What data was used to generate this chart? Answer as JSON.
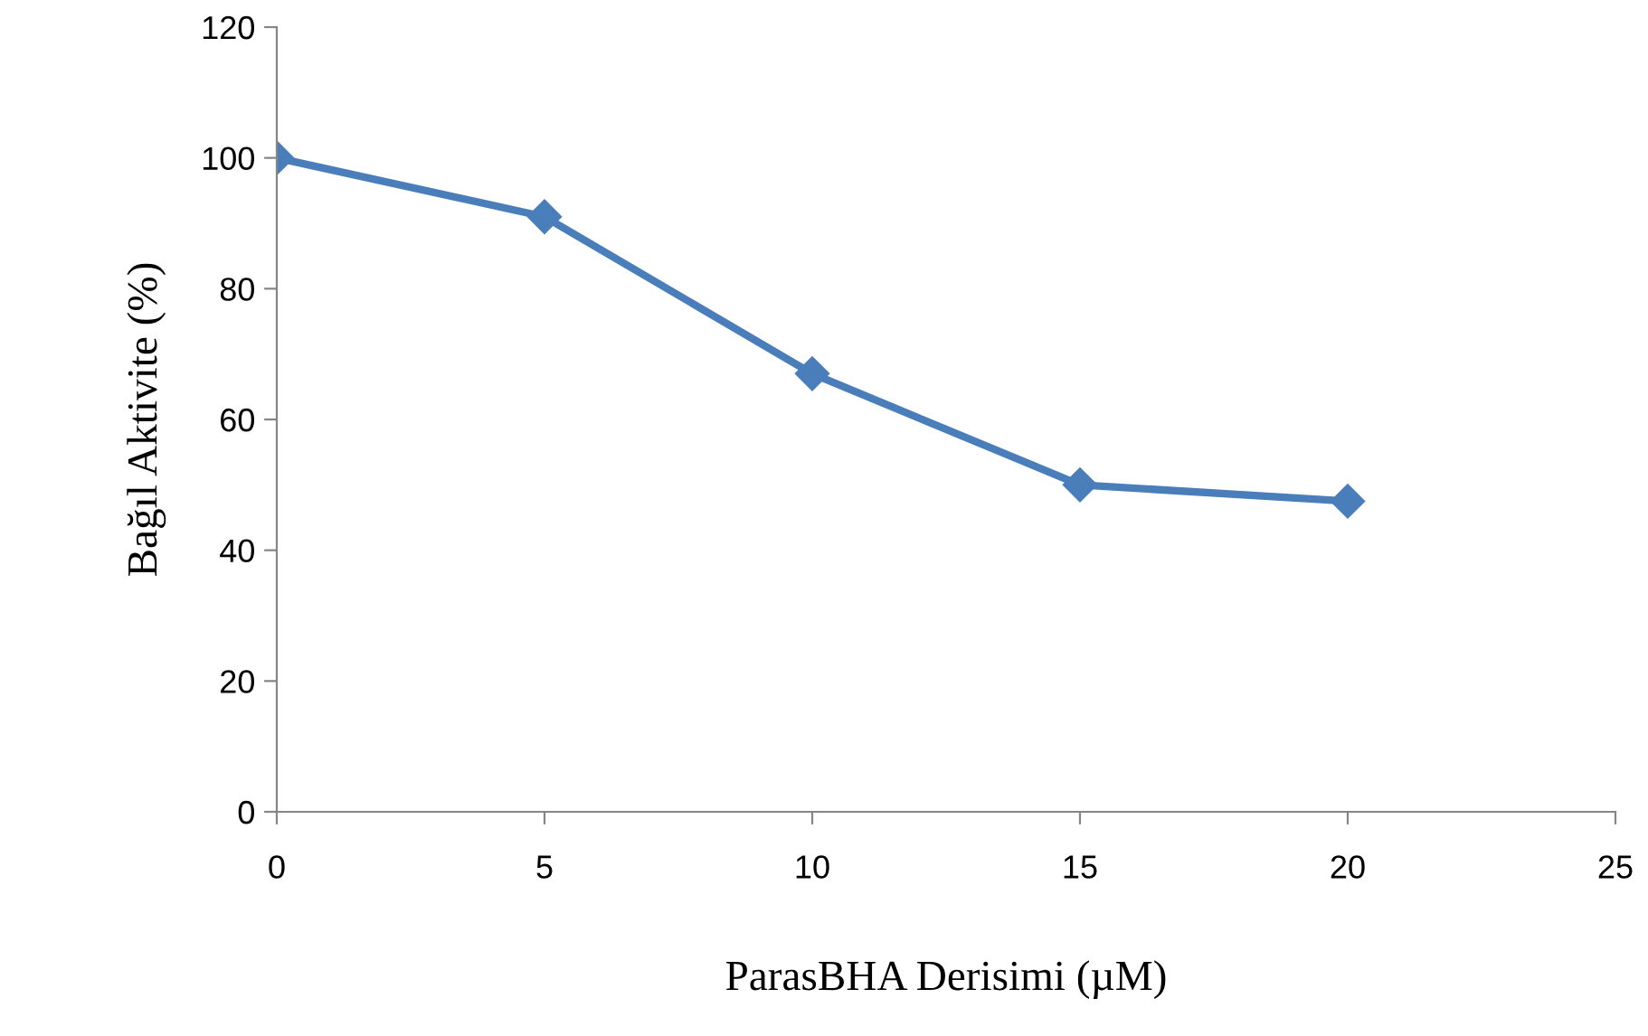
{
  "chart_data": {
    "type": "line",
    "xlabel": "ParasBHA Derisimi (µM)",
    "ylabel": "Bağıl Aktivite (%)",
    "x": [
      0,
      5,
      10,
      15,
      20
    ],
    "series": [
      {
        "color": "#4a7ebb",
        "values": [
          100,
          91,
          67,
          50,
          47.5
        ]
      }
    ],
    "xlim": [
      0,
      25
    ],
    "xticks": [
      0,
      5,
      10,
      15,
      20,
      25
    ],
    "ylim": [
      0,
      120
    ],
    "yticks": [
      0,
      20,
      40,
      60,
      80,
      100,
      120
    ],
    "marker": "diamond",
    "line_style": "solid",
    "grid": false,
    "legend": false
  }
}
